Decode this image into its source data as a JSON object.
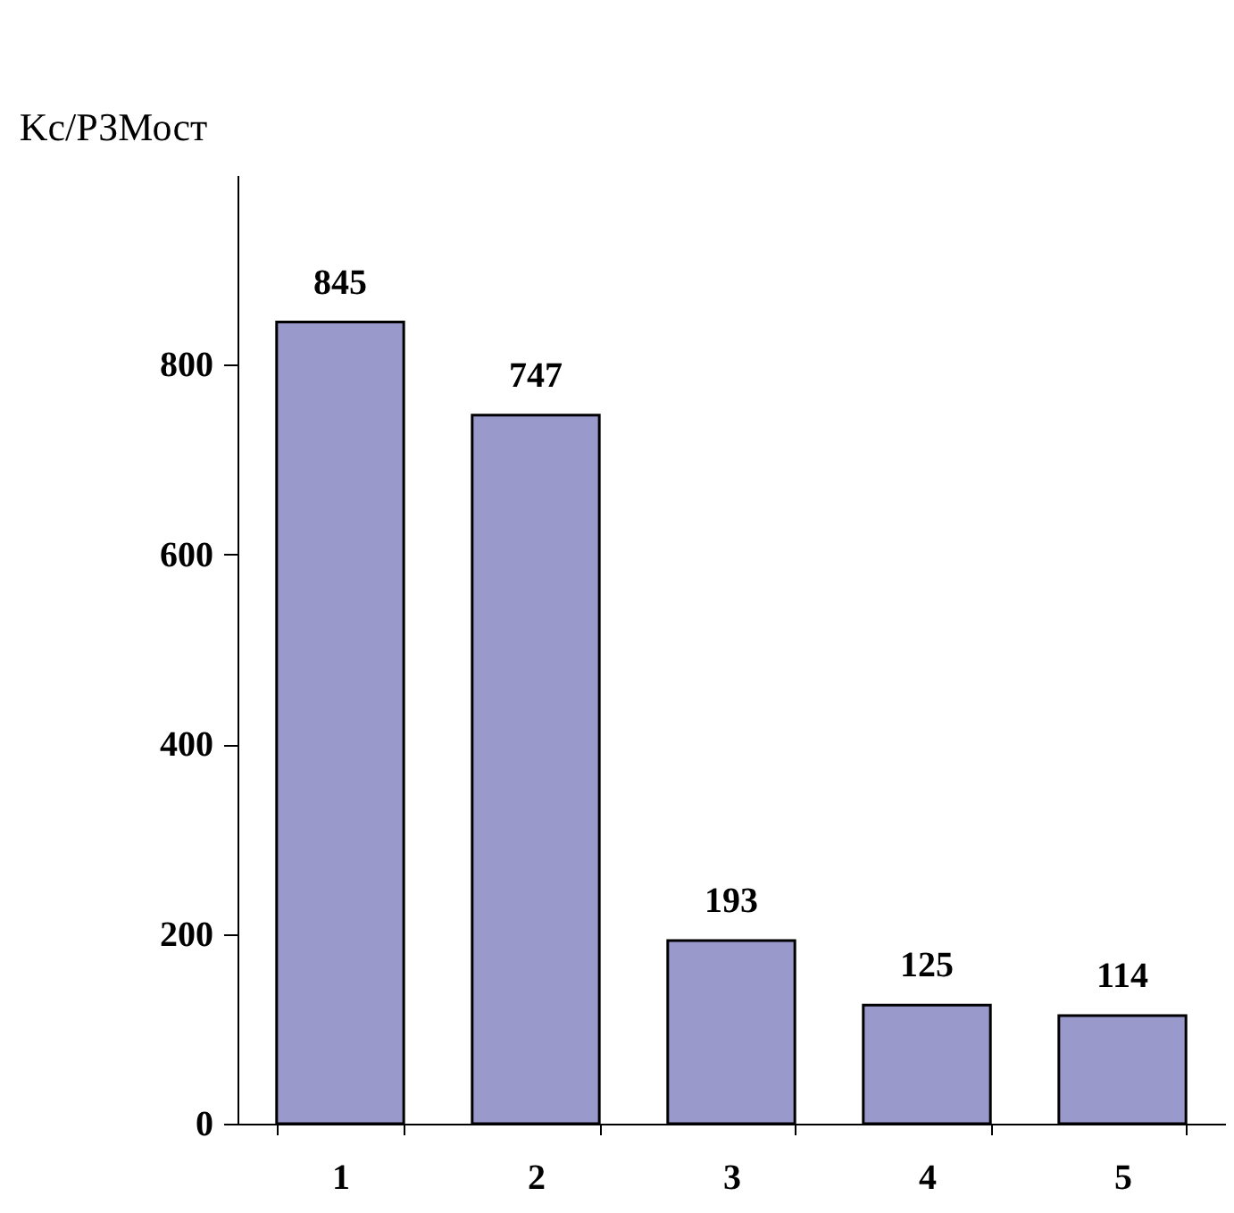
{
  "chart_data": {
    "type": "bar",
    "ylabel": "Kс/РЗМост",
    "categories": [
      "1",
      "2",
      "3",
      "4",
      "5"
    ],
    "values": [
      845,
      747,
      193,
      125,
      114
    ],
    "color": "#9999cc",
    "ylim": [
      0,
      1000
    ],
    "yticks": [
      0,
      200,
      400,
      600,
      800
    ],
    "data_labels": true,
    "grid": false
  }
}
